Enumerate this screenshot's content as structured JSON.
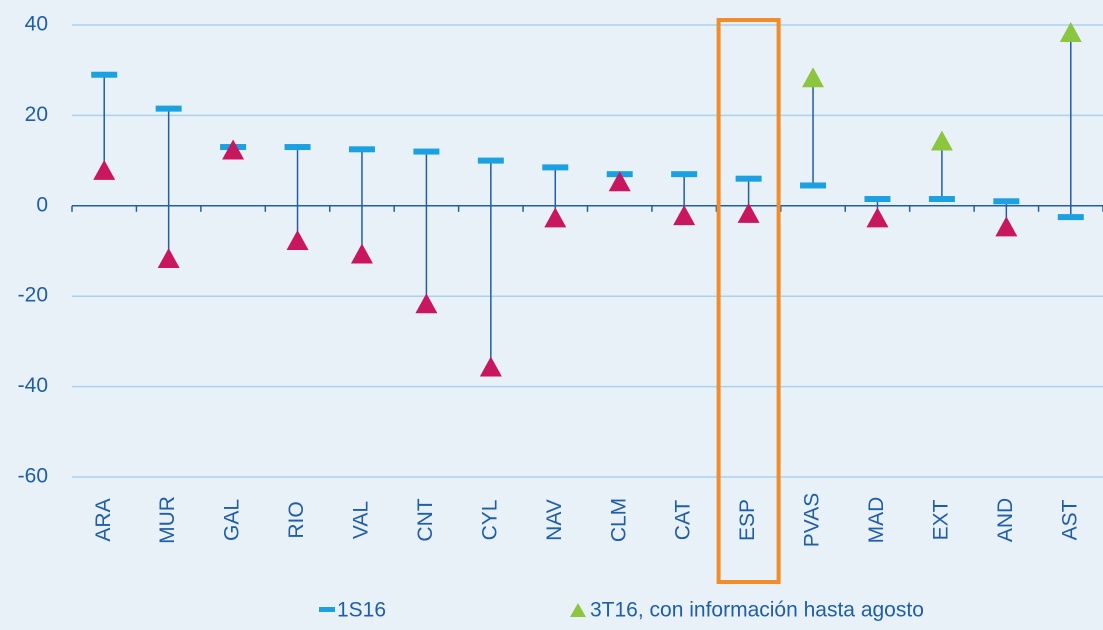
{
  "chart_data": {
    "type": "dot_range",
    "categories": [
      "ARA",
      "MUR",
      "GAL",
      "RIO",
      "VAL",
      "CNT",
      "CYL",
      "NAV",
      "CLM",
      "CAT",
      "ESP",
      "PVAS",
      "MAD",
      "EXT",
      "AND",
      "AST"
    ],
    "series": [
      {
        "name": "1S16",
        "color": "#1ba1e2",
        "values": [
          29,
          21.5,
          13,
          13,
          12.5,
          12,
          10,
          8.5,
          7,
          7,
          6,
          4.5,
          1.5,
          1.5,
          1,
          -2.5
        ]
      },
      {
        "name": "3T16, con información hasta agosto",
        "color": "#8cc63f",
        "down_color": "#c8175e",
        "values": [
          7.5,
          -12,
          12,
          -8,
          -11,
          -22,
          -36,
          -3,
          5,
          -2.5,
          -2,
          28,
          -3,
          14,
          -5,
          38
        ]
      }
    ],
    "connector_color": "#1f5ea8",
    "highlight_index": 10,
    "highlight_color": "#f28c28",
    "ylim": [
      -60,
      40
    ],
    "yticks": [
      -60,
      -40,
      -20,
      0,
      20,
      40
    ],
    "grid": true,
    "grid_color": "#a9d2ef"
  }
}
